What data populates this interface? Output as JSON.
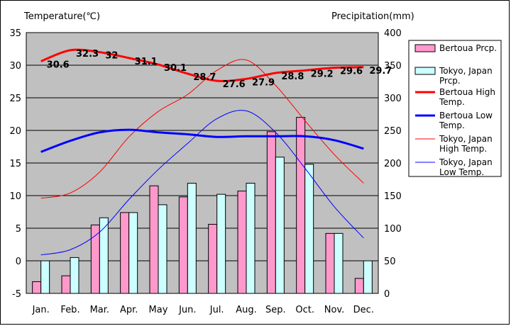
{
  "chart_data": {
    "type": "bar",
    "categories": [
      "Jan.",
      "Feb.",
      "Mar.",
      "Apr.",
      "May",
      "Jun.",
      "Jul.",
      "Aug.",
      "Sep.",
      "Oct.",
      "Nov.",
      "Dec."
    ],
    "y_left_label": "Temperature(℃)",
    "y_right_label": "Precipitation(mm)",
    "y_left_range": [
      -5,
      35
    ],
    "y_right_range": [
      0,
      400
    ],
    "y_left_ticks": [
      "35",
      "30",
      "25",
      "20",
      "15",
      "10",
      "5",
      "0",
      "-5"
    ],
    "y_right_ticks": [
      "400",
      "350",
      "300",
      "250",
      "200",
      "150",
      "100",
      "50",
      "0"
    ],
    "grid": true,
    "plot_background": "#c0c0c0",
    "legend_position": "right",
    "bar_series": [
      {
        "name": "Bertoua Prcp.",
        "color": "#ff99cc",
        "values": [
          18,
          27,
          105,
          124,
          165,
          148,
          106,
          157,
          248,
          270,
          92,
          23
        ]
      },
      {
        "name": "Tokyo, Japan Prcp.",
        "color": "#ccffff",
        "values": [
          50,
          55,
          116,
          124,
          136,
          169,
          152,
          169,
          209,
          198,
          92,
          50
        ]
      }
    ],
    "line_series": [
      {
        "name": "Bertoua High Temp.",
        "color": "#ff0000",
        "width": 3,
        "values": [
          30.6,
          32.3,
          32,
          31.1,
          30.1,
          28.7,
          27.6,
          27.9,
          28.8,
          29.2,
          29.6,
          29.7
        ],
        "labels": [
          "30.6",
          "32.3",
          "32",
          "31.1",
          "30.1",
          "28.7",
          "27.6",
          "27.9",
          "28.8",
          "29.2",
          "29.6",
          "29.7"
        ]
      },
      {
        "name": "Bertoua Low Temp.",
        "color": "#0000ff",
        "width": 3,
        "values": [
          16.7,
          18.4,
          19.7,
          20.1,
          19.7,
          19.4,
          19.0,
          19.1,
          19.1,
          19.1,
          18.5,
          17.2
        ]
      },
      {
        "name": "Tokyo, Japan High Temp.",
        "color": "#ff0000",
        "width": 1,
        "values": [
          9.6,
          10.4,
          13.6,
          19.0,
          22.9,
          25.5,
          29.2,
          30.8,
          26.9,
          21.5,
          16.3,
          11.9
        ]
      },
      {
        "name": "Tokyo, Japan Low Temp.",
        "color": "#0000ff",
        "width": 1,
        "values": [
          0.9,
          1.7,
          4.4,
          9.4,
          14.0,
          18.0,
          21.8,
          23.0,
          19.7,
          14.2,
          8.3,
          3.5
        ]
      }
    ]
  }
}
